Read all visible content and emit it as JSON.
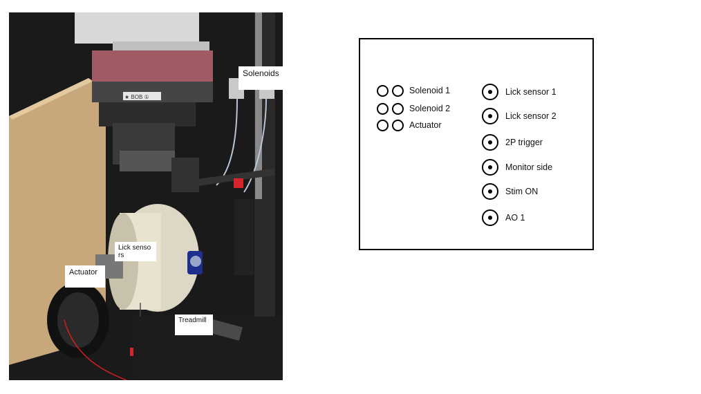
{
  "photo": {
    "labels": {
      "solenoids": "Solenoids",
      "lick_sensors": "Lick sensors",
      "actuator": "Actuator",
      "treadmill": "Treadmill"
    },
    "stage_label": "★ BOB ①"
  },
  "panel": {
    "solenoid_connectors": [
      {
        "label": "Solenoid 1"
      },
      {
        "label": "Solenoid 2"
      },
      {
        "label": "Actuator"
      }
    ],
    "signal_connectors": [
      {
        "label": "Lick sensor 1"
      },
      {
        "label": "Lick sensor 2"
      },
      {
        "label": "2P trigger"
      },
      {
        "label": "Monitor side"
      },
      {
        "label": "Stim ON"
      },
      {
        "label": "AO 1"
      }
    ]
  },
  "colors": {
    "background": "#ffffff",
    "panel_border": "#000000"
  }
}
